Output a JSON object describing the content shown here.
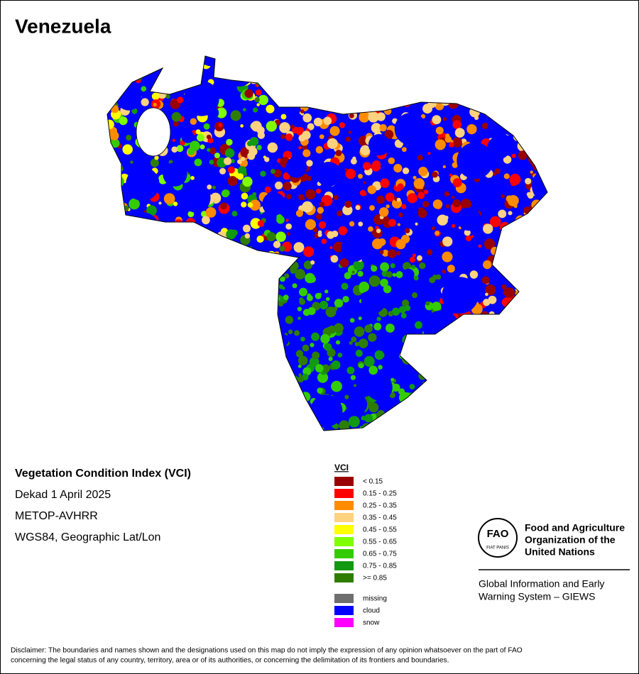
{
  "title": "Venezuela",
  "info": [
    "Vegetation Condition Index (VCI)",
    "Dekad 1 April 2025",
    "METOP-AVHRR",
    "WGS84, Geographic Lat/Lon"
  ],
  "legend": {
    "title": "VCI",
    "classes": [
      {
        "label": "< 0.15",
        "color": "#990000"
      },
      {
        "label": "0.15 - 0.25",
        "color": "#ff0000"
      },
      {
        "label": "0.25 - 0.35",
        "color": "#ff8c00"
      },
      {
        "label": "0.35 - 0.45",
        "color": "#ffd27f"
      },
      {
        "label": "0.45 - 0.55",
        "color": "#ffff00"
      },
      {
        "label": "0.55 - 0.65",
        "color": "#7fff00"
      },
      {
        "label": "0.65 - 0.75",
        "color": "#33cc00"
      },
      {
        "label": "0.75 - 0.85",
        "color": "#119911"
      },
      {
        "label": ">= 0.85",
        "color": "#2e7d00"
      }
    ],
    "other": [
      {
        "label": "missing",
        "color": "#6e6e6e"
      },
      {
        "label": "cloud",
        "color": "#0000ff"
      },
      {
        "label": "snow",
        "color": "#ff00ff"
      }
    ]
  },
  "logo": {
    "emblem": "FAO",
    "motto": "FIAT PANIS",
    "organization": [
      "Food and Agriculture",
      "Organization of the",
      "United Nations"
    ],
    "system": [
      "Global Information and Early",
      "Warning System – GIEWS"
    ]
  },
  "disclaimer": [
    "Disclaimer: The boundaries and names shown and the designations used on this map do not imply the expression of any opinion whatsoever on the part of FAO",
    "concerning the legal status of any country, territory, area or of its authorities, or concerning the delimitation of its frontiers and boundaries."
  ]
}
